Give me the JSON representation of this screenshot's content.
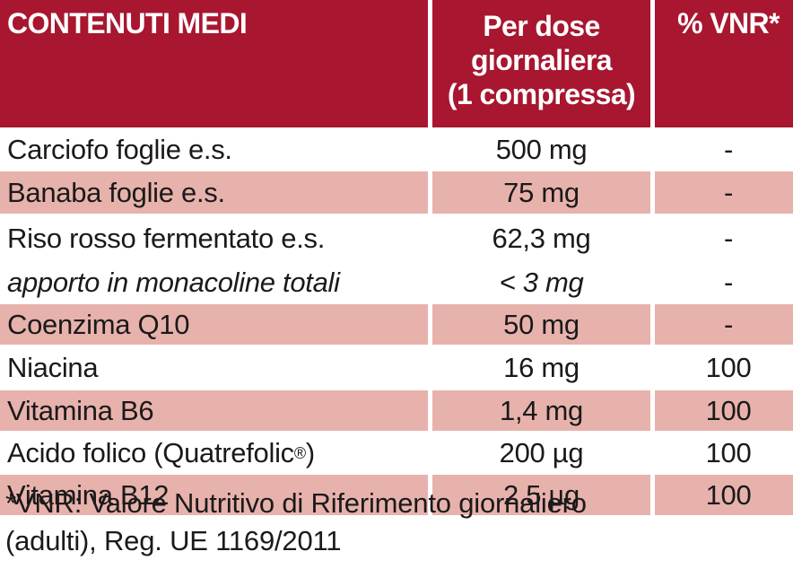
{
  "table": {
    "header": {
      "col1": "CONTENUTI MEDI",
      "col2_lines": [
        "Per dose",
        "giornaliera",
        "(1 compressa)"
      ],
      "col3": "% VNR*"
    },
    "rows": [
      {
        "name": "Carciofo foglie e.s.",
        "dose": "500 mg",
        "vnr": "-",
        "shaded": false,
        "italic": false
      },
      {
        "name": "Banaba foglie e.s.",
        "dose": "75 mg",
        "vnr": "-",
        "shaded": true,
        "italic": false
      },
      {
        "name": "Riso rosso fermentato e.s.",
        "dose": "62,3 mg",
        "vnr": "-",
        "shaded": false,
        "italic": false
      },
      {
        "name": "apporto in monacoline totali",
        "dose": "< 3 mg",
        "vnr": "-",
        "shaded": false,
        "italic": true
      },
      {
        "name": "Coenzima Q10",
        "dose": "50 mg",
        "vnr": "-",
        "shaded": true,
        "italic": false
      },
      {
        "name": "Niacina",
        "dose": "16 mg",
        "vnr": "100",
        "shaded": false,
        "italic": false
      },
      {
        "name": "Vitamina B6",
        "dose": "1,4 mg",
        "vnr": "100",
        "shaded": true,
        "italic": false
      },
      {
        "name": "Acido folico (Quatrefolic",
        "name_sup": "®",
        "name_suffix": ")",
        "dose": "200 µg",
        "vnr": "100",
        "shaded": false,
        "italic": false
      },
      {
        "name": "Vitamina B12",
        "dose": "2,5 µg",
        "vnr": "100",
        "shaded": true,
        "italic": false
      }
    ]
  },
  "footnote": {
    "line1": "*VNR: Valore Nutritivo di Riferimento giornaliero",
    "line2": "(adulti), Reg. UE 1169/2011"
  },
  "colors": {
    "header_bg": "#a8162f",
    "shaded_row": "#e8b2ac"
  }
}
